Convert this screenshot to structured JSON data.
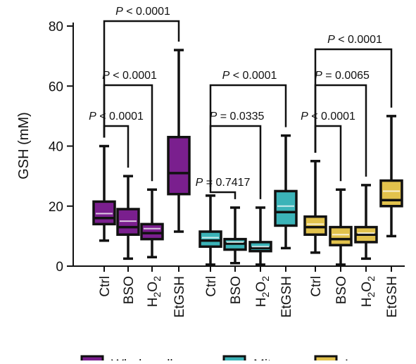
{
  "chart_data": {
    "type": "box",
    "ylabel": "GSH (mM)",
    "ylim": [
      0,
      80
    ],
    "yticks": [
      0,
      20,
      40,
      60,
      80
    ],
    "groups": [
      {
        "name": "Whole cells",
        "color": "#7a1f8e",
        "boxes": [
          {
            "category": "Ctrl",
            "min": 8.5,
            "q1": 14,
            "median": 16,
            "q3": 21.5,
            "max": 40,
            "mean": 17.5
          },
          {
            "category": "BSO",
            "min": 2.5,
            "q1": 10.5,
            "median": 13,
            "q3": 19,
            "max": 30,
            "mean": 15
          },
          {
            "category": "H2O2",
            "min": 3,
            "q1": 9,
            "median": 11,
            "q3": 14,
            "max": 25.5,
            "mean": 12.5
          },
          {
            "category": "EtGSH",
            "min": 11.5,
            "q1": 24,
            "median": 31,
            "q3": 43,
            "max": 72,
            "mean": null
          }
        ]
      },
      {
        "name": "Mito",
        "color": "#3bb3b8",
        "boxes": [
          {
            "category": "Ctrl",
            "min": 0.5,
            "q1": 6.5,
            "median": 8.5,
            "q3": 11.5,
            "max": 23.5,
            "mean": 9.5
          },
          {
            "category": "BSO",
            "min": 1,
            "q1": 5.5,
            "median": 7.5,
            "q3": 9,
            "max": 19.5,
            "mean": 8
          },
          {
            "category": "H2O2",
            "min": 0.5,
            "q1": 5,
            "median": 6,
            "q3": 8,
            "max": 19.5,
            "mean": 6.5
          },
          {
            "category": "EtGSH",
            "min": 6,
            "q1": 13.5,
            "median": 18,
            "q3": 25,
            "max": 43.5,
            "mean": 20
          }
        ]
      },
      {
        "name": "Lyso",
        "color": "#e2c24c",
        "boxes": [
          {
            "category": "Ctrl",
            "min": 4.5,
            "q1": 10.5,
            "median": 13,
            "q3": 16.5,
            "max": 35,
            "mean": 14
          },
          {
            "category": "BSO",
            "min": 0.5,
            "q1": 7,
            "median": 9,
            "q3": 13,
            "max": 25.5,
            "mean": 10.5
          },
          {
            "category": "H2O2",
            "min": 2.5,
            "q1": 8,
            "median": 10.5,
            "q3": 13,
            "max": 27,
            "mean": 11
          },
          {
            "category": "EtGSH",
            "min": 10,
            "q1": 20,
            "median": 22,
            "q3": 28.5,
            "max": 50,
            "mean": 25
          }
        ]
      }
    ],
    "comparisons": [
      {
        "group": 0,
        "from": "Ctrl",
        "to": "BSO",
        "label": "P < 0.0001"
      },
      {
        "group": 0,
        "from": "Ctrl",
        "to": "H2O2",
        "label": "P < 0.0001"
      },
      {
        "group": 0,
        "from": "Ctrl",
        "to": "EtGSH",
        "label": "P < 0.0001"
      },
      {
        "group": 1,
        "from": "Ctrl",
        "to": "BSO",
        "label": "P = 0.7417"
      },
      {
        "group": 1,
        "from": "Ctrl",
        "to": "H2O2",
        "label": "P = 0.0335"
      },
      {
        "group": 1,
        "from": "Ctrl",
        "to": "EtGSH",
        "label": "P < 0.0001"
      },
      {
        "group": 2,
        "from": "Ctrl",
        "to": "BSO",
        "label": "P < 0.0001"
      },
      {
        "group": 2,
        "from": "Ctrl",
        "to": "H2O2",
        "label": "P = 0.0065"
      },
      {
        "group": 2,
        "from": "Ctrl",
        "to": "EtGSH",
        "label": "P < 0.0001"
      }
    ],
    "legend": {
      "placement": "bottom",
      "entries": [
        "Whole cells",
        "Mito",
        "Lyso"
      ]
    }
  }
}
